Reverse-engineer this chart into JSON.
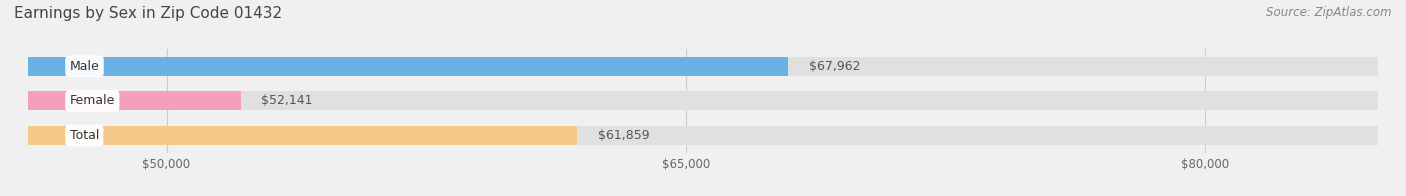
{
  "title": "Earnings by Sex in Zip Code 01432",
  "source": "Source: ZipAtlas.com",
  "categories": [
    "Male",
    "Female",
    "Total"
  ],
  "values": [
    67962,
    52141,
    61859
  ],
  "bar_colors": [
    "#6ab2e4",
    "#f4a0bc",
    "#f5c98a"
  ],
  "xmin": 46000,
  "xmax": 85000,
  "xticks": [
    50000,
    65000,
    80000
  ],
  "xtick_labels": [
    "$50,000",
    "$65,000",
    "$80,000"
  ],
  "background_color": "#f0f0f0",
  "bar_bg_color": "#e0e0e0",
  "title_fontsize": 11,
  "source_fontsize": 8.5,
  "label_fontsize": 9,
  "value_fontsize": 9
}
